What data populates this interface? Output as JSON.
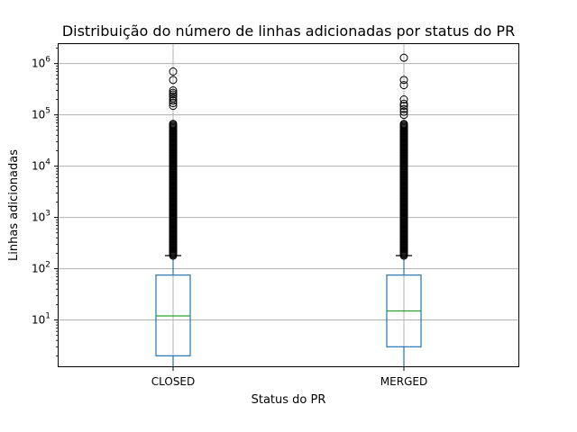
{
  "chart_data": {
    "type": "boxplot",
    "title": "Distribuição do número de linhas adicionadas por status do PR",
    "xlabel": "Status do PR",
    "ylabel": "Linhas adicionadas",
    "yscale": "log",
    "ylim": [
      1.2,
      2500000
    ],
    "grid": true,
    "y_ticks": [
      {
        "value": 10,
        "base": "10",
        "exp": "1"
      },
      {
        "value": 100,
        "base": "10",
        "exp": "2"
      },
      {
        "value": 1000,
        "base": "10",
        "exp": "3"
      },
      {
        "value": 10000,
        "base": "10",
        "exp": "4"
      },
      {
        "value": 100000,
        "base": "10",
        "exp": "5"
      },
      {
        "value": 1000000,
        "base": "10",
        "exp": "6"
      }
    ],
    "categories": [
      "CLOSED",
      "MERGED"
    ],
    "boxes": [
      {
        "category": "CLOSED",
        "whisker_low": 1,
        "q1": 2,
        "median": 12,
        "q3": 75,
        "whisker_high": 180,
        "outliers_min": 180,
        "outliers_max": 700000,
        "sparse_outliers": [
          700000,
          480000,
          300000,
          270000,
          250000,
          230000,
          210000,
          190000,
          170000,
          150000
        ]
      },
      {
        "category": "MERGED",
        "whisker_low": 1,
        "q1": 3,
        "median": 15,
        "q3": 75,
        "whisker_high": 180,
        "outliers_min": 180,
        "outliers_max": 1300000,
        "sparse_outliers": [
          1300000,
          480000,
          380000,
          200000,
          165000,
          150000,
          130000,
          115000,
          100000
        ]
      }
    ],
    "colors": {
      "box": "#1f77b4",
      "median": "#2ca02c",
      "grid": "#b0b0b0",
      "outlier": "#000000"
    }
  }
}
